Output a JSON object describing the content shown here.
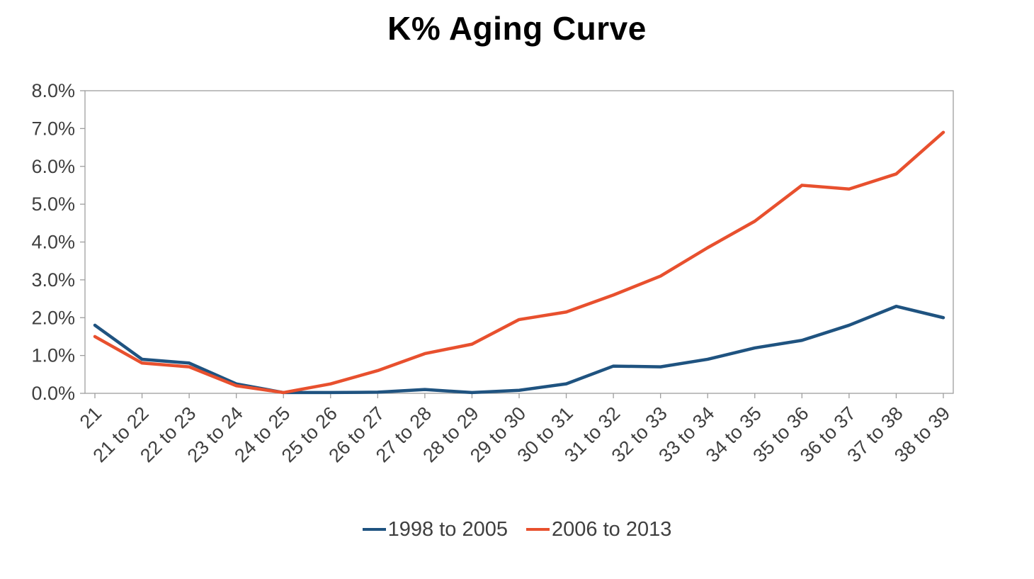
{
  "chart_data": {
    "type": "line",
    "title": "K% Aging Curve",
    "categories": [
      "21",
      "21 to 22",
      "22 to 23",
      "23 to 24",
      "24 to 25",
      "25 to 26",
      "26 to 27",
      "27 to 28",
      "28 to 29",
      "29 to 30",
      "30 to 31",
      "31 to 32",
      "32 to 33",
      "33 to 34",
      "34 to 35",
      "35 to 36",
      "36 to 37",
      "37 to 38",
      "38 to 39"
    ],
    "series": [
      {
        "name": "1998 to 2005",
        "color": "#1f5380",
        "values": [
          1.8,
          0.9,
          0.8,
          0.25,
          0.02,
          0.02,
          0.03,
          0.1,
          0.02,
          0.08,
          0.25,
          0.72,
          0.7,
          0.9,
          1.2,
          1.4,
          1.8,
          2.3,
          2.0
        ]
      },
      {
        "name": "2006 to 2013",
        "color": "#e8502e",
        "values": [
          1.5,
          0.8,
          0.7,
          0.2,
          0.02,
          0.25,
          0.6,
          1.05,
          1.3,
          1.95,
          2.15,
          2.6,
          3.1,
          3.85,
          4.55,
          5.5,
          5.4,
          5.8,
          6.9
        ]
      }
    ],
    "xlabel": "",
    "ylabel": "",
    "ylim": [
      0,
      8
    ],
    "ytick_step": 1,
    "ytick_labels": [
      "0.0%",
      "1.0%",
      "2.0%",
      "3.0%",
      "4.0%",
      "5.0%",
      "6.0%",
      "7.0%",
      "8.0%"
    ],
    "grid": false,
    "legend_position": "bottom",
    "colors": {
      "axis": "#9e9e9e",
      "text": "#3f3f3f",
      "title": "#000000",
      "background": "#ffffff"
    }
  }
}
